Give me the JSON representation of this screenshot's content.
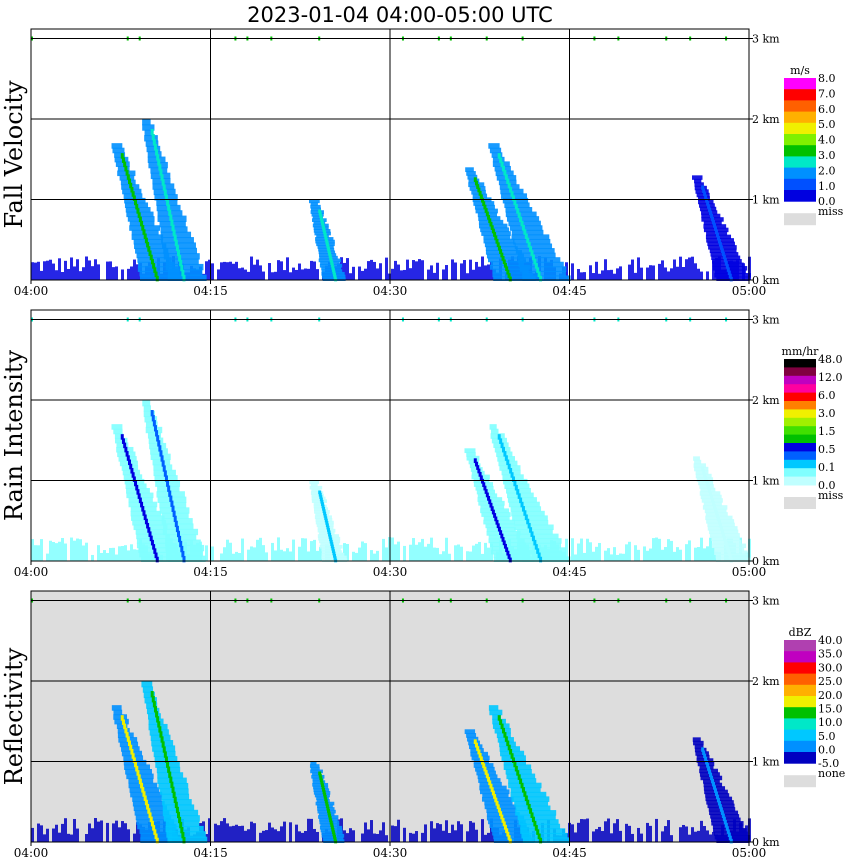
{
  "title": "2023-01-04   04:00-05:00 UTC",
  "x_ticks": [
    "04:00",
    "04:15",
    "04:30",
    "04:45",
    "05:00"
  ],
  "y_ticks": [
    "0 km",
    "1 km",
    "2 km",
    "3 km"
  ],
  "chart_data": [
    {
      "type": "heatmap",
      "ylabel": "Fall Velocity",
      "colorbar_unit": "m/s",
      "colorbar_labels": [
        "8.0",
        "7.0",
        "6.0",
        "5.0",
        "4.0",
        "3.0",
        "2.0",
        "1.0",
        "0.0"
      ],
      "colorbar_colors": [
        "#ff00ff",
        "#ff0000",
        "#ff6000",
        "#ffb000",
        "#f0f000",
        "#80f000",
        "#00c000",
        "#00e8c8",
        "#0090ff",
        "#0050ff",
        "#0000e0"
      ],
      "missing_label": "miss",
      "missing_color": "#dddddd",
      "background": "#ffffff",
      "xlim": [
        "04:00",
        "05:00"
      ],
      "ylim_km": [
        0,
        3.1
      ],
      "echoes": [
        {
          "t0": 7.0,
          "t1": 12.5,
          "top_km": 1.7,
          "shaft_color": "#00c000",
          "body_color": "#0090ff"
        },
        {
          "t0": 9.5,
          "t1": 14.5,
          "top_km": 2.0,
          "shaft_color": "#00e8c8",
          "body_color": "#0090ff"
        },
        {
          "t0": 23.5,
          "t1": 26.0,
          "top_km": 1.0,
          "shaft_color": "#00e8c8",
          "body_color": "#0090ff"
        },
        {
          "t0": 36.5,
          "t1": 42.0,
          "top_km": 1.4,
          "shaft_color": "#00c000",
          "body_color": "#0090ff"
        },
        {
          "t0": 38.5,
          "t1": 45.0,
          "top_km": 1.7,
          "shaft_color": "#00e8c8",
          "body_color": "#0090ff"
        },
        {
          "t0": 55.5,
          "t1": 60.0,
          "top_km": 1.3,
          "shaft_color": "#0050ff",
          "body_color": "#0000e0"
        }
      ],
      "near_surface_color": "#0000e0",
      "speckle_color": "#00c000"
    },
    {
      "type": "heatmap",
      "ylabel": "Rain Intensity",
      "colorbar_unit": "mm/hr",
      "colorbar_labels": [
        "48.0",
        "12.0",
        "6.0",
        "3.0",
        "1.5",
        "0.5",
        "0.1",
        "0.0"
      ],
      "colorbar_colors": [
        "#000000",
        "#800040",
        "#c000c0",
        "#ff00a0",
        "#ff0000",
        "#ff8000",
        "#f0f000",
        "#a0f000",
        "#40e000",
        "#00c000",
        "#0000e0",
        "#0060ff",
        "#00c8ff",
        "#80ffff",
        "#c0ffff"
      ],
      "missing_label": "miss",
      "missing_color": "#dddddd",
      "background": "#ffffff",
      "xlim": [
        "04:00",
        "05:00"
      ],
      "ylim_km": [
        0,
        3.1
      ],
      "echoes": [
        {
          "t0": 7.0,
          "t1": 12.5,
          "top_km": 1.7,
          "shaft_color": "#0000e0",
          "body_color": "#80ffff"
        },
        {
          "t0": 9.5,
          "t1": 14.5,
          "top_km": 2.0,
          "shaft_color": "#0060ff",
          "body_color": "#80ffff"
        },
        {
          "t0": 23.5,
          "t1": 26.0,
          "top_km": 1.0,
          "shaft_color": "#00c8ff",
          "body_color": "#c0ffff"
        },
        {
          "t0": 36.5,
          "t1": 42.0,
          "top_km": 1.4,
          "shaft_color": "#0000e0",
          "body_color": "#80ffff"
        },
        {
          "t0": 38.5,
          "t1": 45.0,
          "top_km": 1.7,
          "shaft_color": "#00c8ff",
          "body_color": "#80ffff"
        },
        {
          "t0": 55.5,
          "t1": 60.0,
          "top_km": 1.3,
          "shaft_color": "#c0ffff",
          "body_color": "#c0ffff"
        }
      ],
      "near_surface_color": "#80ffff",
      "speckle_color": "#00e8c8"
    },
    {
      "type": "heatmap",
      "ylabel": "Reflectivity",
      "colorbar_unit": "dBZ",
      "colorbar_labels": [
        "40.0",
        "35.0",
        "30.0",
        "25.0",
        "20.0",
        "15.0",
        "10.0",
        "5.0",
        "0.0",
        "-5.0"
      ],
      "colorbar_colors": [
        "#b040b0",
        "#c000c0",
        "#ff0000",
        "#ff6000",
        "#ffb000",
        "#f0f000",
        "#00c000",
        "#00e8c8",
        "#00c8ff",
        "#0090ff",
        "#0000c0"
      ],
      "missing_label": "none",
      "missing_color": "#dddddd",
      "background": "#dddddd",
      "xlim": [
        "04:00",
        "05:00"
      ],
      "ylim_km": [
        0,
        3.1
      ],
      "echoes": [
        {
          "t0": 7.0,
          "t1": 12.5,
          "top_km": 1.7,
          "shaft_color": "#f0f000",
          "body_color": "#0090ff"
        },
        {
          "t0": 9.5,
          "t1": 14.5,
          "top_km": 2.0,
          "shaft_color": "#00c000",
          "body_color": "#00c8ff"
        },
        {
          "t0": 23.5,
          "t1": 26.0,
          "top_km": 1.0,
          "shaft_color": "#00c000",
          "body_color": "#0090ff"
        },
        {
          "t0": 36.5,
          "t1": 42.0,
          "top_km": 1.4,
          "shaft_color": "#f0f000",
          "body_color": "#0090ff"
        },
        {
          "t0": 38.5,
          "t1": 45.0,
          "top_km": 1.7,
          "shaft_color": "#00c000",
          "body_color": "#00c8ff"
        },
        {
          "t0": 55.5,
          "t1": 60.0,
          "top_km": 1.3,
          "shaft_color": "#0090ff",
          "body_color": "#0000c0"
        }
      ],
      "near_surface_color": "#0000c0",
      "speckle_color": "#00c000"
    }
  ]
}
